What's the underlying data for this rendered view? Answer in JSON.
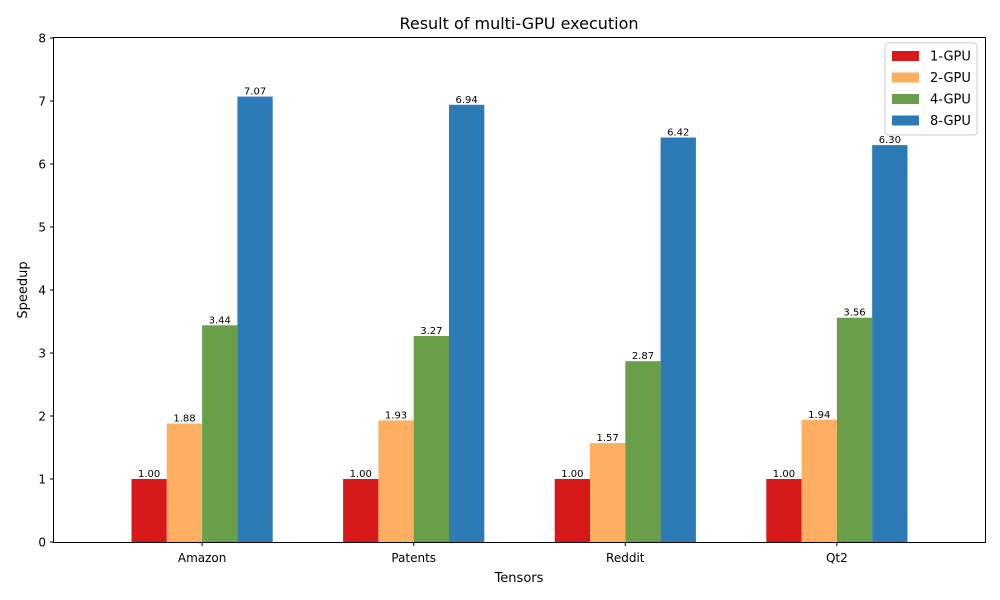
{
  "chart_data": {
    "type": "bar",
    "title": "Result of multi-GPU execution",
    "xlabel": "Tensors",
    "ylabel": "Speedup",
    "categories": [
      "Amazon",
      "Patents",
      "Reddit",
      "Qt2"
    ],
    "ylim": [
      0,
      8
    ],
    "yticks": [
      "0",
      "1",
      "2",
      "3",
      "4",
      "5",
      "6",
      "7",
      "8"
    ],
    "grid": false,
    "legend_position": "top-right",
    "series": [
      {
        "name": "1-GPU",
        "color": "#d7191c",
        "values": [
          1.0,
          1.0,
          1.0,
          1.0
        ],
        "labels": [
          "1.00",
          "1.00",
          "1.00",
          "1.00"
        ]
      },
      {
        "name": "2-GPU",
        "color": "#fdae61",
        "values": [
          1.88,
          1.93,
          1.57,
          1.94
        ],
        "labels": [
          "1.88",
          "1.93",
          "1.57",
          "1.94"
        ]
      },
      {
        "name": "4-GPU",
        "color": "#6a9f4a",
        "values": [
          3.44,
          3.27,
          2.87,
          3.56
        ],
        "labels": [
          "3.44",
          "3.27",
          "2.87",
          "3.56"
        ]
      },
      {
        "name": "8-GPU",
        "color": "#2c7bb6",
        "values": [
          7.07,
          6.94,
          6.42,
          6.3
        ],
        "labels": [
          "7.07",
          "6.94",
          "6.42",
          "6.30"
        ]
      }
    ]
  }
}
